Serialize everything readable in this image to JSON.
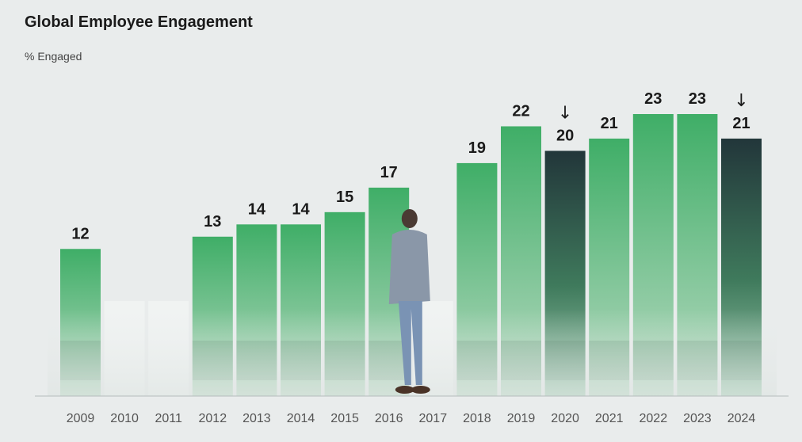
{
  "title": "Global Employee Engagement",
  "subtitle": "% Engaged",
  "chart_data": {
    "type": "bar",
    "title": "Global Employee Engagement",
    "ylabel": "% Engaged",
    "categories": [
      "2009",
      "2010",
      "2011",
      "2012",
      "2013",
      "2014",
      "2015",
      "2016",
      "2017",
      "2018",
      "2019",
      "2020",
      "2021",
      "2022",
      "2023",
      "2024"
    ],
    "values": [
      12,
      null,
      null,
      13,
      14,
      14,
      15,
      17,
      null,
      19,
      22,
      20,
      21,
      23,
      23,
      21
    ],
    "decline_markers": [
      "2020",
      "2024"
    ],
    "arrow_glyph": "↓",
    "ylim": [
      0,
      23
    ],
    "grid": false,
    "colors": {
      "bar_top": "#3fae67",
      "bar_bottom": "#b7d9c1",
      "decline_top": "#22363a",
      "decline_bottom": "#5a8f72",
      "baseline": "#b5bcbc"
    }
  }
}
